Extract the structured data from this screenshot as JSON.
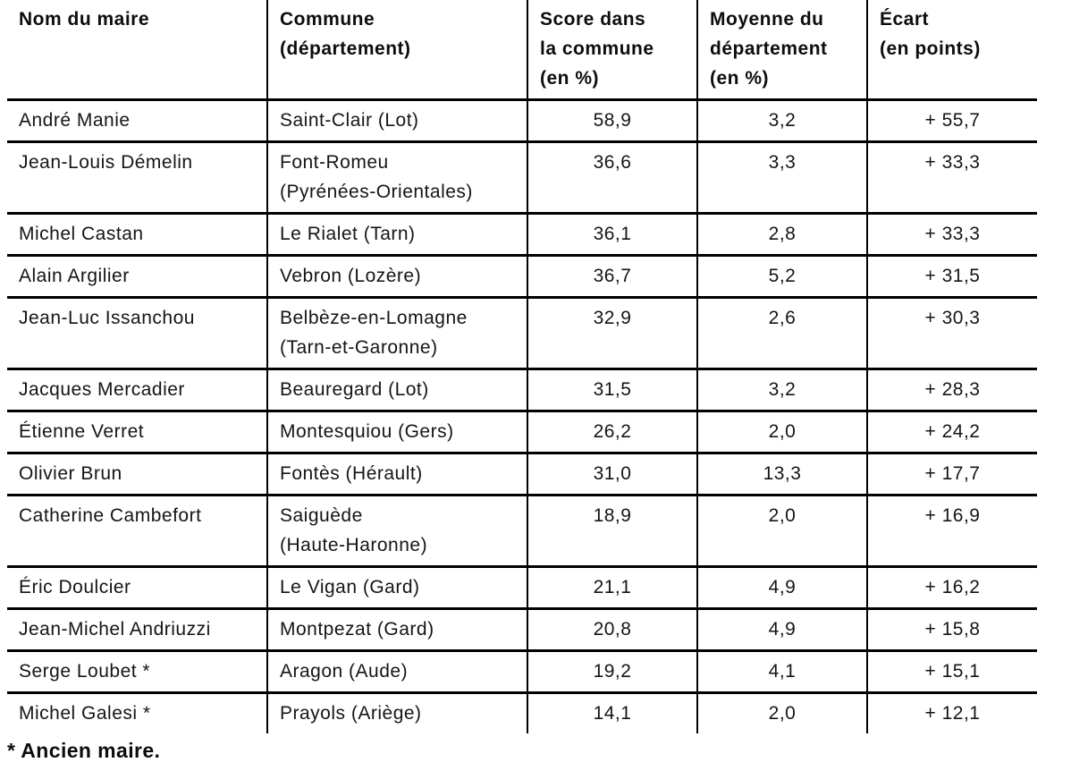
{
  "table": {
    "headers": [
      "Nom du maire",
      "Commune\n(département)",
      "Score dans\nla commune\n(en %)",
      "Moyenne du\ndépartement\n(en %)",
      "Écart\n(en points)"
    ],
    "rows": [
      {
        "maire": "André Manie",
        "commune": "Saint-Clair (Lot)",
        "score": "58,9",
        "moyenne": "3,2",
        "ecart": "+ 55,7"
      },
      {
        "maire": "Jean-Louis Démelin",
        "commune": "Font-Romeu\n(Pyrénées-Orientales)",
        "score": "36,6",
        "moyenne": "3,3",
        "ecart": "+ 33,3"
      },
      {
        "maire": "Michel Castan",
        "commune": "Le Rialet (Tarn)",
        "score": "36,1",
        "moyenne": "2,8",
        "ecart": "+ 33,3"
      },
      {
        "maire": "Alain Argilier",
        "commune": "Vebron (Lozère)",
        "score": "36,7",
        "moyenne": "5,2",
        "ecart": "+ 31,5"
      },
      {
        "maire": "Jean-Luc Issanchou",
        "commune": "Belbèze-en-Lomagne\n(Tarn-et-Garonne)",
        "score": "32,9",
        "moyenne": "2,6",
        "ecart": "+ 30,3"
      },
      {
        "maire": "Jacques Mercadier",
        "commune": "Beauregard (Lot)",
        "score": "31,5",
        "moyenne": "3,2",
        "ecart": "+ 28,3"
      },
      {
        "maire": "Étienne Verret",
        "commune": "Montesquiou (Gers)",
        "score": "26,2",
        "moyenne": "2,0",
        "ecart": "+ 24,2"
      },
      {
        "maire": "Olivier Brun",
        "commune": "Fontès (Hérault)",
        "score": "31,0",
        "moyenne": "13,3",
        "ecart": "+ 17,7"
      },
      {
        "maire": "Catherine Cambefort",
        "commune": "Saiguède\n(Haute-Haronne)",
        "score": "18,9",
        "moyenne": "2,0",
        "ecart": "+ 16,9"
      },
      {
        "maire": "Éric Doulcier",
        "commune": "Le Vigan (Gard)",
        "score": "21,1",
        "moyenne": "4,9",
        "ecart": "+ 16,2"
      },
      {
        "maire": "Jean-Michel Andriuzzi",
        "commune": "Montpezat (Gard)",
        "score": "20,8",
        "moyenne": "4,9",
        "ecart": "+ 15,8"
      },
      {
        "maire": "Serge Loubet *",
        "commune": "Aragon (Aude)",
        "score": "19,2",
        "moyenne": "4,1",
        "ecart": "+ 15,1"
      },
      {
        "maire": "Michel Galesi *",
        "commune": "Prayols (Ariège)",
        "score": "14,1",
        "moyenne": "2,0",
        "ecart": "+ 12,1"
      }
    ]
  },
  "footnote": "* Ancien maire.",
  "colors": {
    "border": "#000000",
    "text": "#151515",
    "background": "#ffffff"
  }
}
